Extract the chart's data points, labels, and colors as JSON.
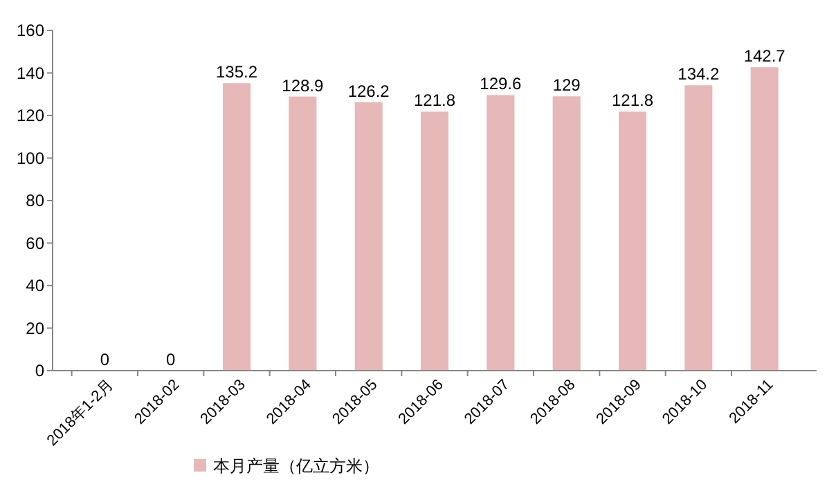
{
  "chart_data": {
    "type": "bar",
    "categories": [
      "2018年1-2月",
      "2018-02",
      "2018-03",
      "2018-04",
      "2018-05",
      "2018-06",
      "2018-07",
      "2018-08",
      "2018-09",
      "2018-10",
      "2018-11"
    ],
    "series": [
      {
        "name": "本月产量（亿立方米）",
        "color": "#e6b8b7",
        "values": [
          0,
          0,
          135.2,
          128.9,
          126.2,
          121.8,
          129.6,
          129,
          121.8,
          134.2,
          142.7
        ]
      }
    ],
    "ylim": [
      0,
      160
    ],
    "yticks": [
      0,
      20,
      40,
      60,
      80,
      100,
      120,
      140,
      160
    ],
    "data_labels": true,
    "legend": "bottom",
    "grid": false
  }
}
